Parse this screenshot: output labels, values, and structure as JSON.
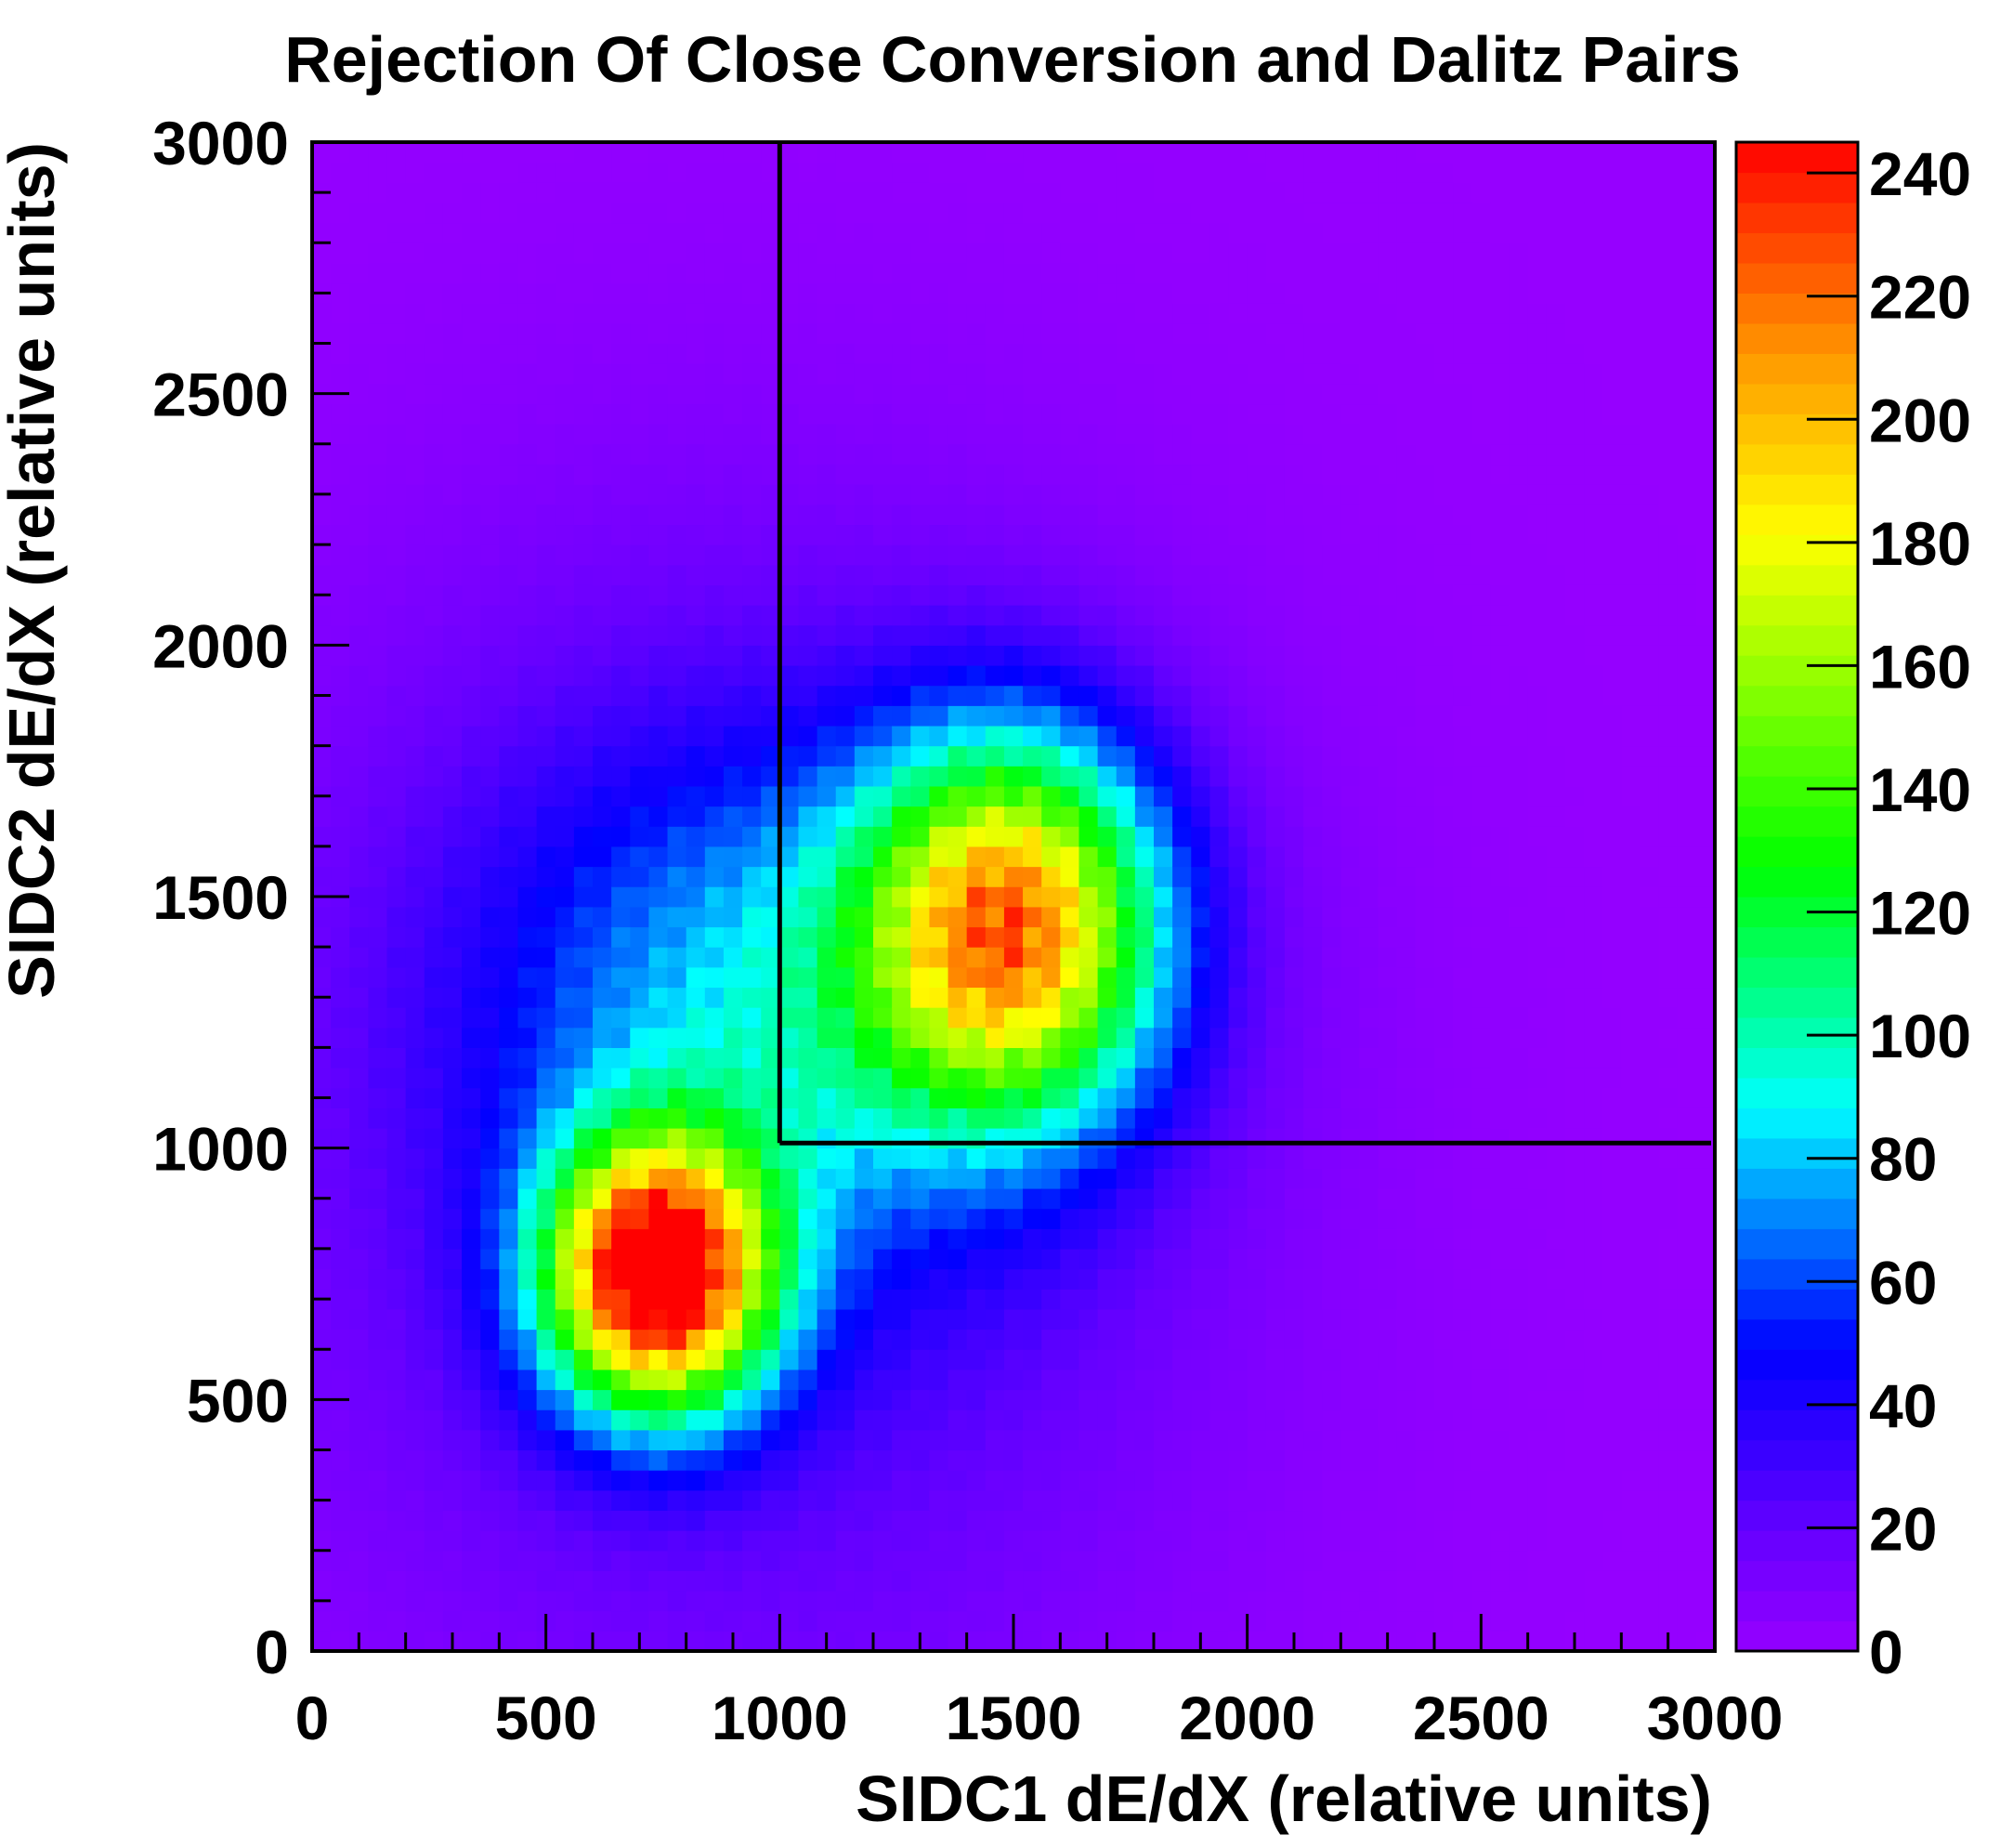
{
  "chart_data": {
    "type": "heatmap",
    "title": "Rejection Of Close Conversion and Dalitz Pairs",
    "xlabel": "SIDC1 dE/dX (relative units)",
    "ylabel": "SIDC2 dE/dX (relative units)",
    "xlim": [
      0,
      3000
    ],
    "ylim": [
      0,
      3000
    ],
    "x_ticks": [
      "0",
      "500",
      "1000",
      "1500",
      "2000",
      "2500",
      "3000"
    ],
    "y_ticks": [
      "0",
      "500",
      "1000",
      "1500",
      "2000",
      "2500",
      "3000"
    ],
    "colorbar": {
      "range": [
        0,
        245
      ],
      "ticks": [
        "0",
        "20",
        "40",
        "60",
        "80",
        "100",
        "120",
        "140",
        "160",
        "180",
        "200",
        "220",
        "240"
      ]
    },
    "clusters": [
      {
        "x": 740,
        "y": 750,
        "peak": 245,
        "sx": 170,
        "sy": 190
      },
      {
        "x": 1500,
        "y": 1450,
        "peak": 175,
        "sx": 220,
        "sy": 260
      },
      {
        "x": 1050,
        "y": 1300,
        "peak": 55,
        "sx": 450,
        "sy": 350
      },
      {
        "x": 900,
        "y": 1050,
        "peak": 35,
        "sx": 700,
        "sy": 800
      }
    ],
    "cut_box": {
      "x_min": 1000,
      "y_min": 1010
    },
    "grid": false
  }
}
